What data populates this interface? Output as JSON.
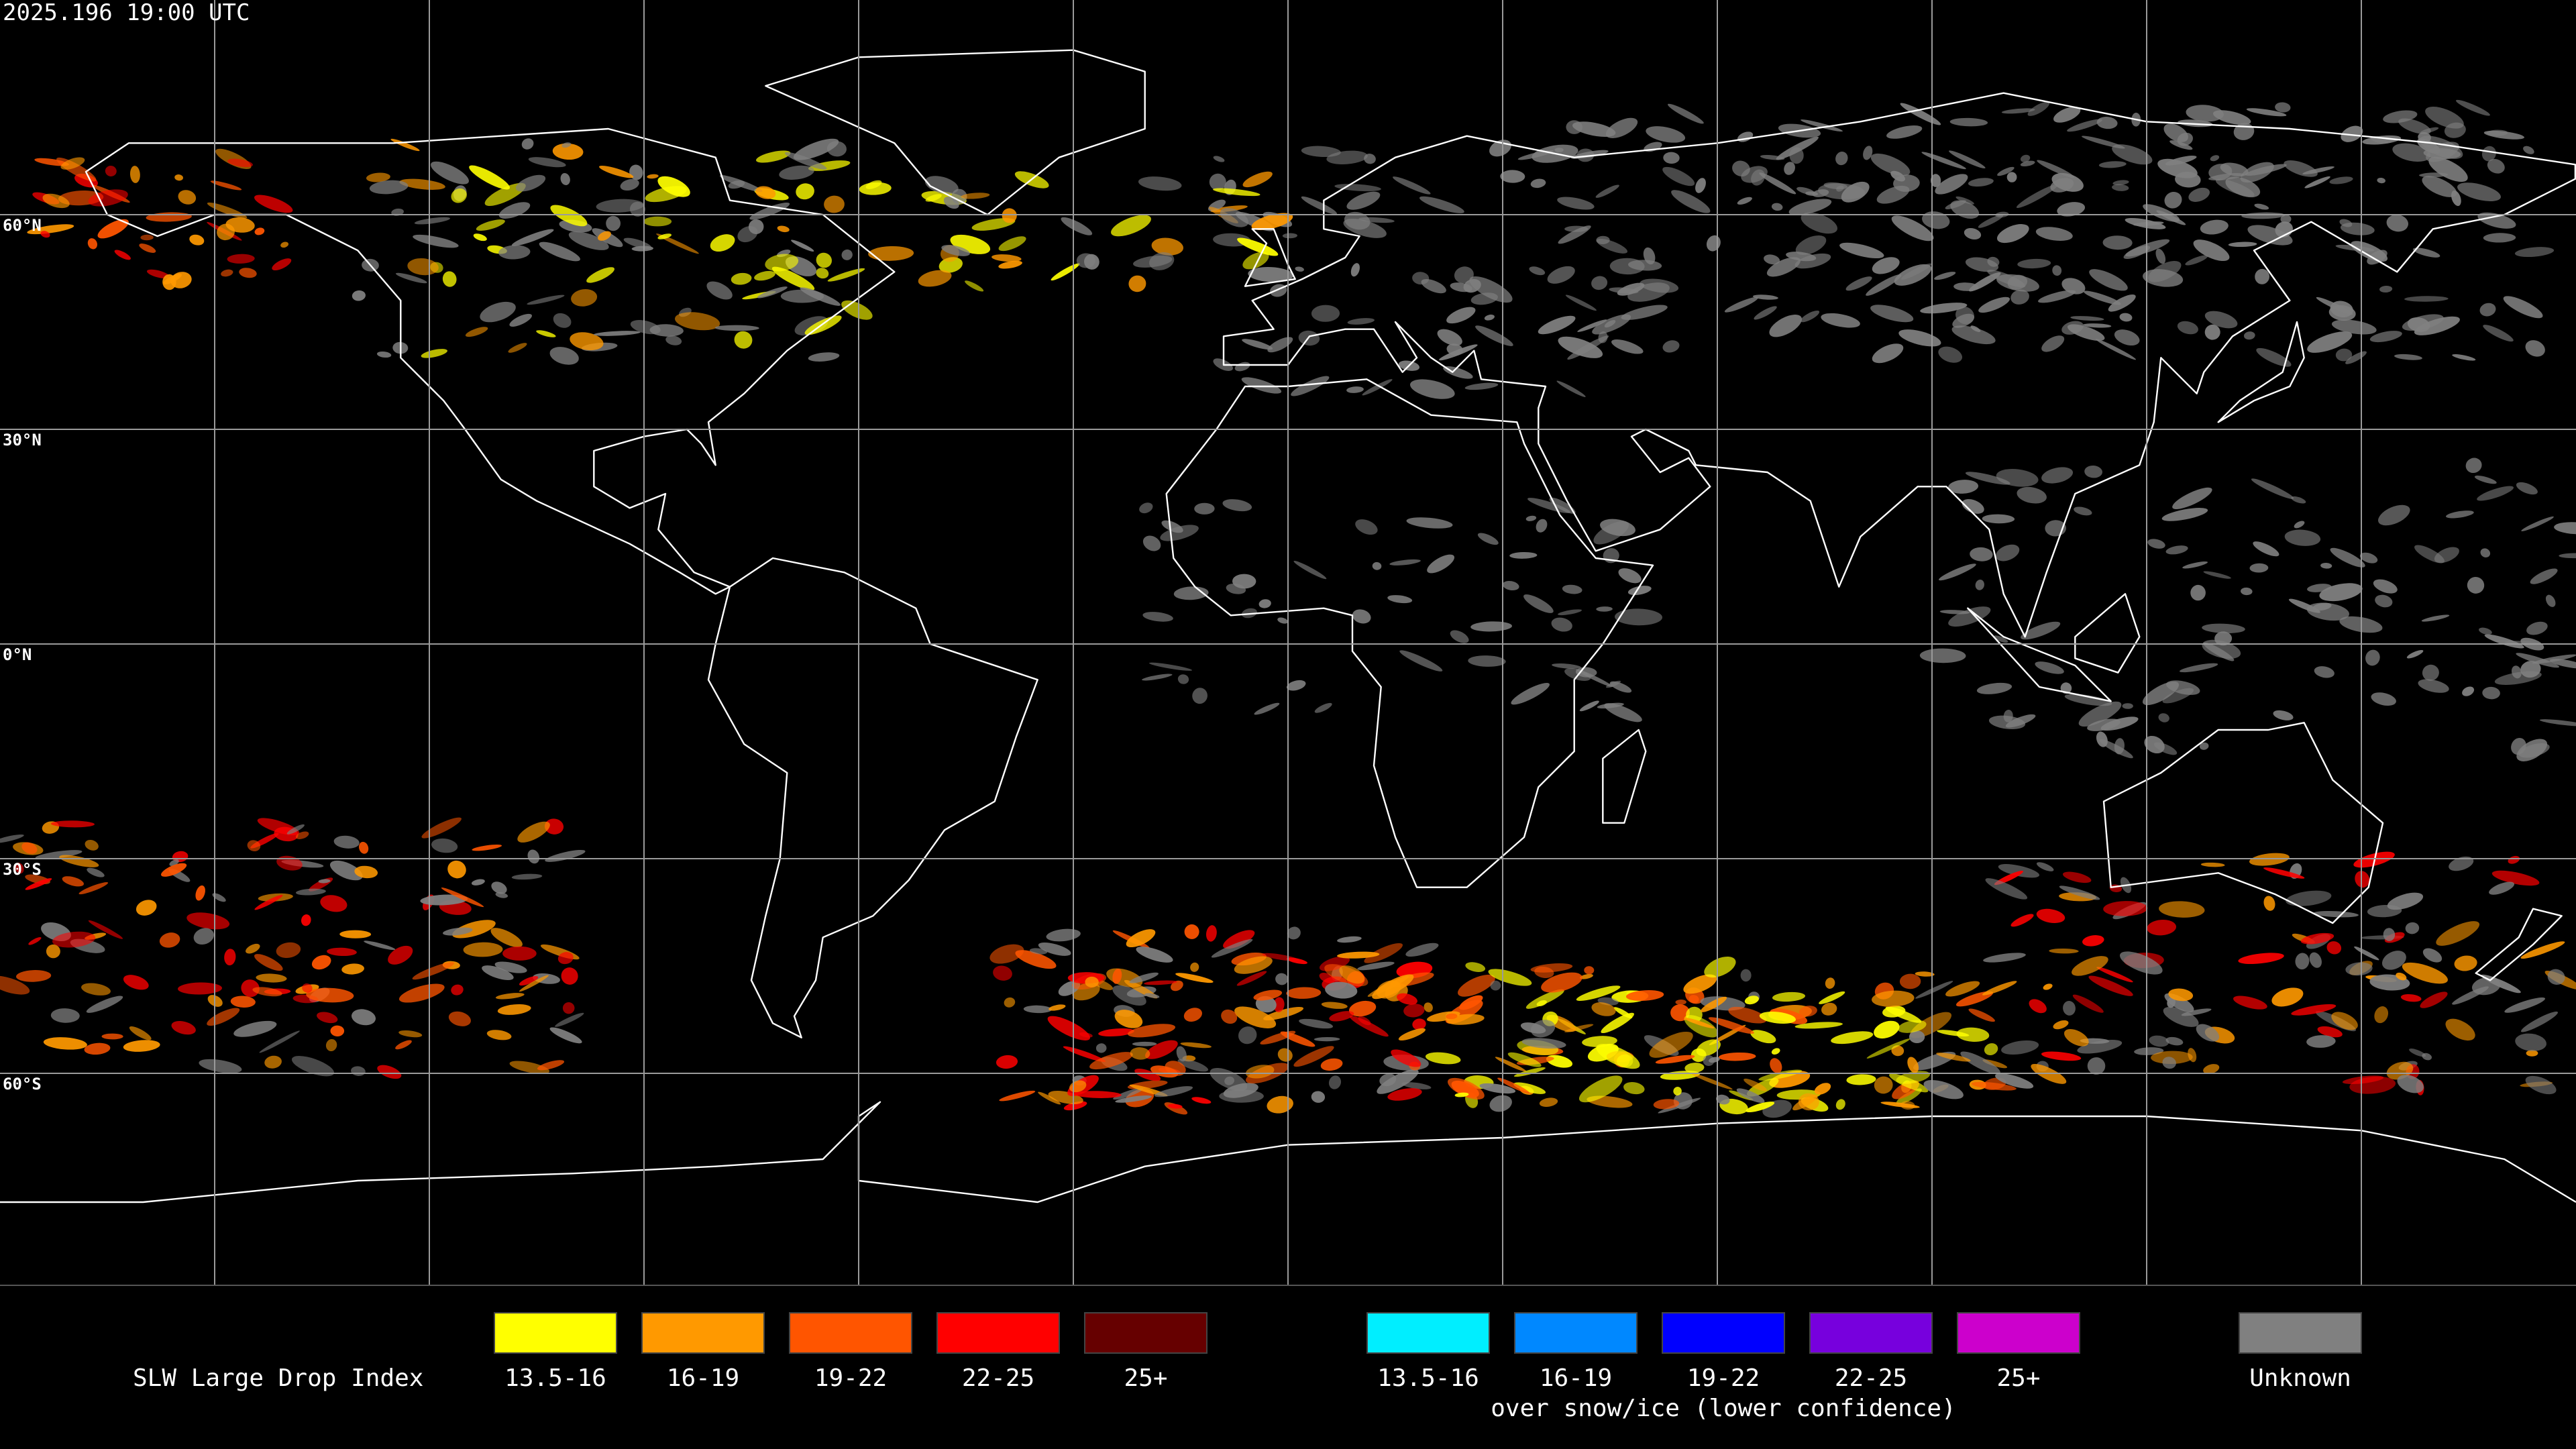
{
  "header": {
    "timestamp": "2025.196 19:00 UTC"
  },
  "map": {
    "lat_labels": [
      "60°N",
      "30°N",
      "0°N",
      "30°S",
      "60°S"
    ]
  },
  "legend": {
    "title": "SLW Large Drop Index",
    "groups": [
      {
        "items": [
          {
            "label": "13.5-16",
            "color": "#ffff00"
          },
          {
            "label": "16-19",
            "color": "#ff9900"
          },
          {
            "label": "19-22",
            "color": "#ff5500"
          },
          {
            "label": "22-25",
            "color": "#ff0000"
          },
          {
            "label": "25+",
            "color": "#660000"
          }
        ]
      },
      {
        "items": [
          {
            "label": "13.5-16",
            "color": "#00eeff"
          },
          {
            "label": "16-19",
            "color": "#0088ff"
          },
          {
            "label": "19-22",
            "color": "#0000ff"
          },
          {
            "label": "22-25",
            "color": "#7700dd"
          },
          {
            "label": "25+",
            "color": "#cc00cc"
          }
        ],
        "caption": "over snow/ice (lower confidence)"
      }
    ],
    "unknown": {
      "label": "Unknown",
      "color": "#808080"
    }
  }
}
